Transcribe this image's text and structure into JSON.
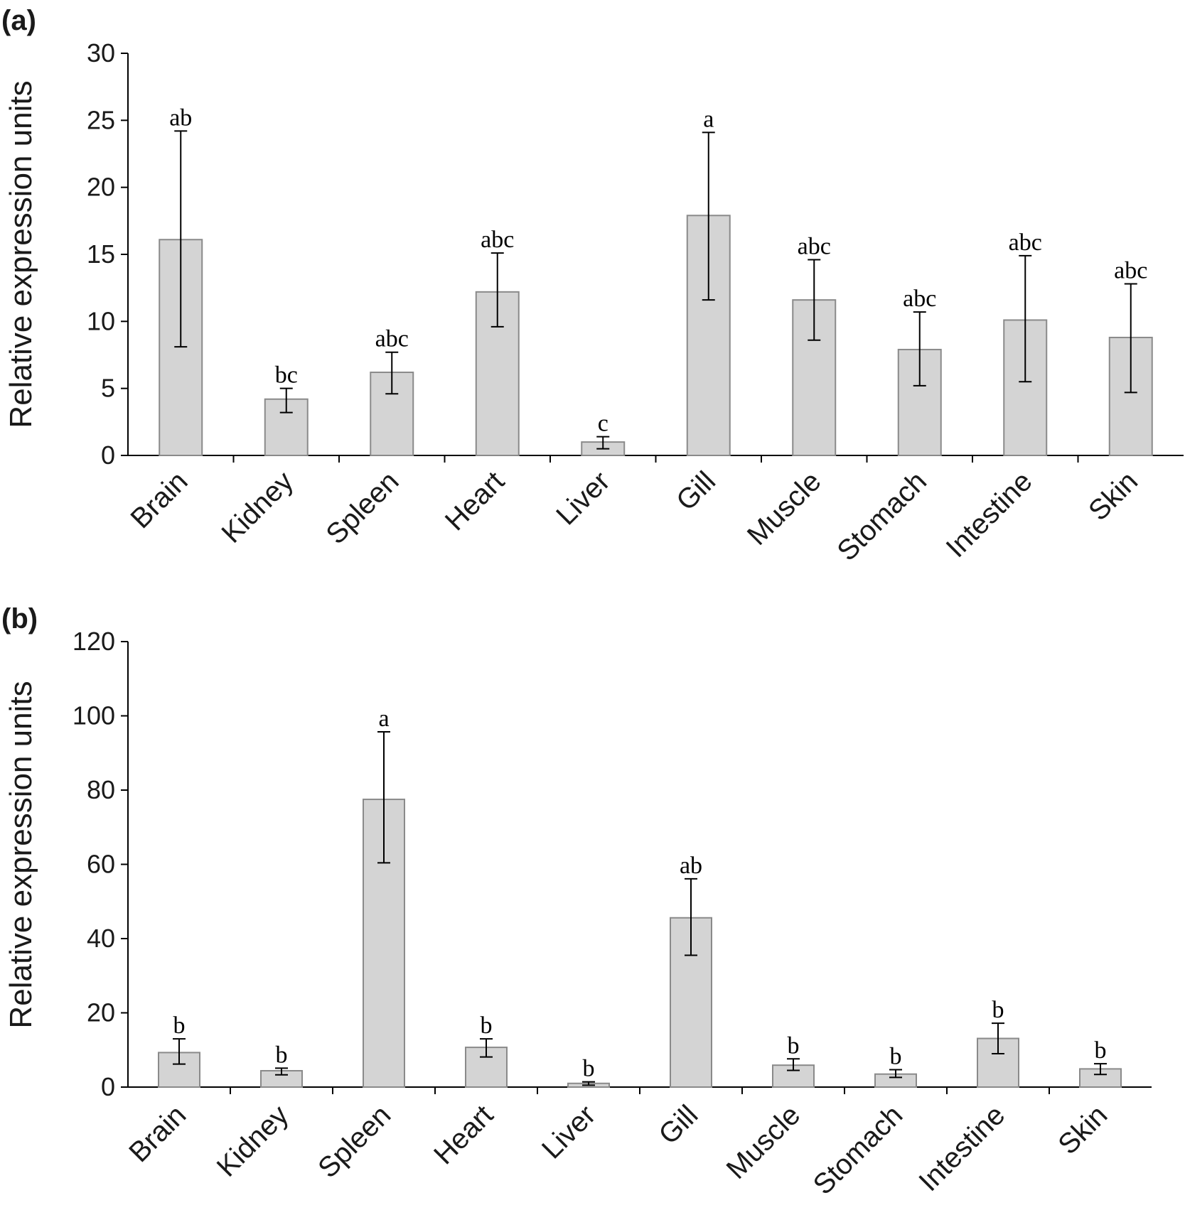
{
  "chart_data": [
    {
      "type": "bar",
      "panel_label": "(a)",
      "ylabel": "Relative expression units",
      "xlabel": "",
      "ylim": [
        0,
        30
      ],
      "yticks": [
        0,
        5,
        10,
        15,
        20,
        25,
        30
      ],
      "categories": [
        "Brain",
        "Kidney",
        "Spleen",
        "Heart",
        "Liver",
        "Gill",
        "Muscle",
        "Stomach",
        "Intestine",
        "Skin"
      ],
      "values": [
        16.1,
        4.2,
        6.2,
        12.2,
        1.0,
        17.9,
        11.6,
        7.9,
        10.1,
        8.8
      ],
      "error_low": [
        8.1,
        3.2,
        4.6,
        9.6,
        0.5,
        11.6,
        8.6,
        5.2,
        5.5,
        4.7
      ],
      "error_high": [
        24.2,
        5.0,
        7.7,
        15.1,
        1.4,
        24.1,
        14.6,
        10.7,
        14.9,
        12.8
      ],
      "significance": [
        "ab",
        "bc",
        "abc",
        "abc",
        "c",
        "a",
        "abc",
        "abc",
        "abc",
        "abc"
      ]
    },
    {
      "type": "bar",
      "panel_label": "(b)",
      "ylabel": "Relative expression units",
      "xlabel": "",
      "ylim": [
        0,
        120
      ],
      "yticks": [
        0,
        20,
        40,
        60,
        80,
        100,
        120
      ],
      "categories": [
        "Brain",
        "Kidney",
        "Spleen",
        "Heart",
        "Liver",
        "Gill",
        "Muscle",
        "Stomach",
        "Intestine",
        "Skin"
      ],
      "values": [
        9.3,
        4.4,
        77.5,
        10.7,
        1.0,
        45.6,
        5.9,
        3.5,
        13.1,
        4.9
      ],
      "error_low": [
        6.2,
        3.3,
        60.4,
        8.1,
        0.5,
        35.5,
        4.5,
        2.6,
        9.0,
        3.4
      ],
      "error_high": [
        13.0,
        5.1,
        95.7,
        13.0,
        1.4,
        56.1,
        7.6,
        4.7,
        17.2,
        6.3
      ],
      "significance": [
        "b",
        "b",
        "a",
        "b",
        "b",
        "ab",
        "b",
        "b",
        "b",
        "b"
      ]
    }
  ]
}
